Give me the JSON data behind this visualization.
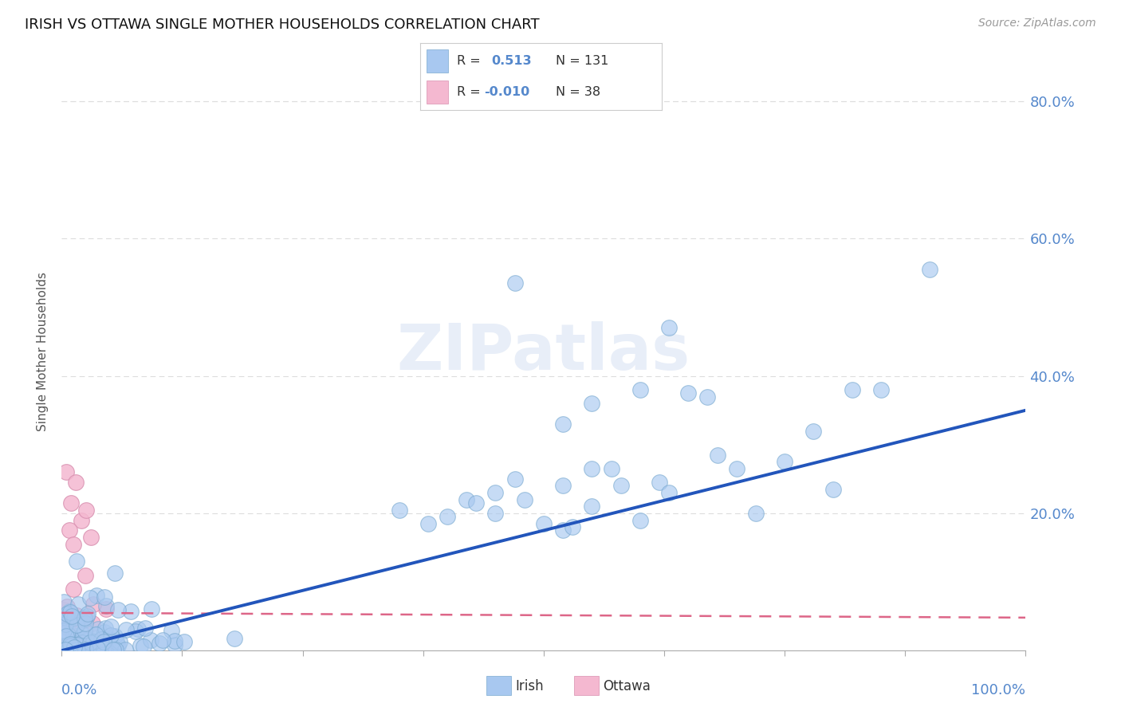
{
  "title": "IRISH VS OTTAWA SINGLE MOTHER HOUSEHOLDS CORRELATION CHART",
  "source": "Source: ZipAtlas.com",
  "ylabel": "Single Mother Households",
  "xlim": [
    0,
    1
  ],
  "ylim": [
    0,
    0.87
  ],
  "ytick_vals": [
    0.2,
    0.4,
    0.6,
    0.8
  ],
  "ytick_labels": [
    "20.0%",
    "40.0%",
    "60.0%",
    "80.0%"
  ],
  "legend_irish_r": "0.513",
  "legend_irish_n": "131",
  "legend_ottawa_r": "-0.010",
  "legend_ottawa_n": "38",
  "irish_color": "#a8c8f0",
  "irish_edge_color": "#7aaad0",
  "ottawa_color": "#f4b8d0",
  "ottawa_edge_color": "#d890b0",
  "irish_line_color": "#2255bb",
  "ottawa_line_color": "#dd6688",
  "tick_color": "#5588cc",
  "grid_color": "#dddddd",
  "watermark_color": "#e8eef8",
  "background_color": "#ffffff",
  "irish_line_x0": 0.0,
  "irish_line_y0": 0.0,
  "irish_line_x1": 1.0,
  "irish_line_y1": 0.35,
  "ottawa_line_x0": 0.0,
  "ottawa_line_y0": 0.055,
  "ottawa_line_x1": 1.0,
  "ottawa_line_y1": 0.048
}
